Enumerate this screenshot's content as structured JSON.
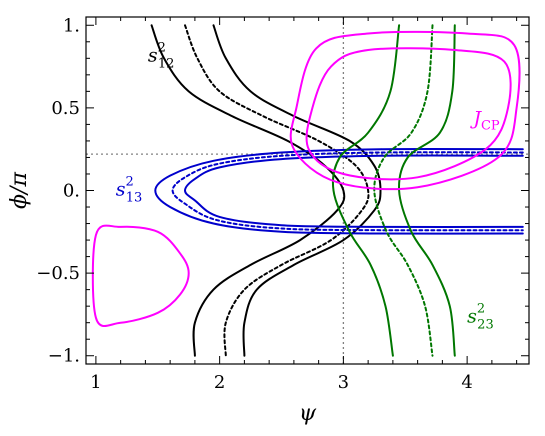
{
  "chart_data": {
    "type": "line",
    "xlabel": "ψ",
    "ylabel": "ϕ/π",
    "xlim": [
      0.92,
      4.5
    ],
    "ylim": [
      -1.05,
      1.05
    ],
    "xticks": [
      1,
      2,
      3,
      4
    ],
    "xtick_labels": [
      "1",
      "2",
      "3",
      "4"
    ],
    "yticks": [
      1.0,
      0.5,
      0.0,
      -0.5,
      -1.0
    ],
    "ytick_labels": [
      "1.",
      "0.5",
      "0.",
      "−0.5",
      "−1."
    ],
    "grid": false,
    "reference_lines": {
      "x": 3.0,
      "y": 0.22,
      "color": "#808080",
      "style": "dotted"
    },
    "colors": {
      "s12": "#000000",
      "s13": "#0000cc",
      "s23": "#007700",
      "jcp": "#ff00ff",
      "ref": "#808080"
    },
    "annotations": [
      {
        "id": "s12",
        "base": "s",
        "sub": "12",
        "sup": "2",
        "x": 1.42,
        "y": 0.78
      },
      {
        "id": "s13",
        "base": "s",
        "sub": "13",
        "sup": "2",
        "x": 1.16,
        "y": -0.03
      },
      {
        "id": "jcp",
        "base": "J",
        "sub": "CP",
        "sup": "",
        "x": 4.05,
        "y": 0.4
      },
      {
        "id": "s23",
        "base": "s",
        "sub": "23",
        "sup": "2",
        "x": 4.0,
        "y": -0.8
      }
    ],
    "series": [
      {
        "group": "s12",
        "style": "solid",
        "points": [
          [
            1.45,
            1.0
          ],
          [
            1.55,
            0.8
          ],
          [
            1.75,
            0.6
          ],
          [
            2.1,
            0.45
          ],
          [
            2.55,
            0.3
          ],
          [
            2.85,
            0.15
          ],
          [
            3.0,
            0.0
          ],
          [
            2.95,
            -0.12
          ],
          [
            2.65,
            -0.3
          ],
          [
            2.25,
            -0.45
          ],
          [
            1.95,
            -0.6
          ],
          [
            1.8,
            -0.8
          ],
          [
            1.8,
            -1.0
          ]
        ]
      },
      {
        "group": "s12",
        "style": "dotted",
        "points": [
          [
            1.72,
            1.0
          ],
          [
            1.82,
            0.8
          ],
          [
            2.0,
            0.6
          ],
          [
            2.35,
            0.45
          ],
          [
            2.8,
            0.3
          ],
          [
            3.1,
            0.15
          ],
          [
            3.2,
            0.0
          ],
          [
            3.15,
            -0.12
          ],
          [
            2.9,
            -0.3
          ],
          [
            2.5,
            -0.45
          ],
          [
            2.2,
            -0.6
          ],
          [
            2.05,
            -0.8
          ],
          [
            2.05,
            -1.0
          ]
        ]
      },
      {
        "group": "s12",
        "style": "solid",
        "points": [
          [
            1.95,
            1.0
          ],
          [
            2.05,
            0.8
          ],
          [
            2.25,
            0.6
          ],
          [
            2.6,
            0.45
          ],
          [
            3.05,
            0.3
          ],
          [
            3.25,
            0.15
          ],
          [
            3.3,
            0.0
          ],
          [
            3.25,
            -0.12
          ],
          [
            3.0,
            -0.3
          ],
          [
            2.6,
            -0.45
          ],
          [
            2.3,
            -0.6
          ],
          [
            2.2,
            -0.8
          ],
          [
            2.2,
            -1.0
          ]
        ]
      },
      {
        "group": "s13",
        "style": "solid",
        "points": [
          [
            4.45,
            0.25
          ],
          [
            3.3,
            0.25
          ],
          [
            2.5,
            0.23
          ],
          [
            1.95,
            0.18
          ],
          [
            1.6,
            0.09
          ],
          [
            1.48,
            0.0
          ],
          [
            1.6,
            -0.1
          ],
          [
            1.95,
            -0.2
          ],
          [
            2.5,
            -0.25
          ],
          [
            3.3,
            -0.26
          ],
          [
            4.45,
            -0.26
          ]
        ]
      },
      {
        "group": "s13",
        "style": "solid",
        "points": [
          [
            4.45,
            0.21
          ],
          [
            3.3,
            0.21
          ],
          [
            2.5,
            0.19
          ],
          [
            2.0,
            0.14
          ],
          [
            1.8,
            0.07
          ],
          [
            1.72,
            0.0
          ],
          [
            1.8,
            -0.06
          ],
          [
            2.0,
            -0.16
          ],
          [
            2.5,
            -0.21
          ],
          [
            3.3,
            -0.22
          ],
          [
            4.45,
            -0.22
          ]
        ]
      },
      {
        "group": "s13",
        "style": "dotted",
        "points": [
          [
            4.45,
            0.23
          ],
          [
            3.3,
            0.23
          ],
          [
            2.5,
            0.21
          ],
          [
            1.98,
            0.16
          ],
          [
            1.72,
            0.08
          ],
          [
            1.62,
            0.0
          ],
          [
            1.72,
            -0.08
          ],
          [
            1.98,
            -0.18
          ],
          [
            2.5,
            -0.23
          ],
          [
            3.3,
            -0.24
          ],
          [
            4.45,
            -0.24
          ]
        ]
      },
      {
        "group": "s23",
        "style": "solid",
        "points": [
          [
            3.45,
            1.0
          ],
          [
            3.38,
            0.6
          ],
          [
            3.2,
            0.35
          ],
          [
            2.97,
            0.2
          ],
          [
            2.92,
            0.0
          ],
          [
            3.05,
            -0.25
          ],
          [
            3.22,
            -0.45
          ],
          [
            3.34,
            -0.7
          ],
          [
            3.4,
            -1.0
          ]
        ]
      },
      {
        "group": "s23",
        "style": "dotted",
        "points": [
          [
            3.72,
            1.0
          ],
          [
            3.68,
            0.6
          ],
          [
            3.55,
            0.35
          ],
          [
            3.33,
            0.2
          ],
          [
            3.25,
            0.0
          ],
          [
            3.35,
            -0.25
          ],
          [
            3.52,
            -0.45
          ],
          [
            3.66,
            -0.7
          ],
          [
            3.72,
            -1.0
          ]
        ]
      },
      {
        "group": "s23",
        "style": "solid",
        "points": [
          [
            3.9,
            1.0
          ],
          [
            3.88,
            0.6
          ],
          [
            3.78,
            0.35
          ],
          [
            3.52,
            0.2
          ],
          [
            3.45,
            0.0
          ],
          [
            3.55,
            -0.25
          ],
          [
            3.72,
            -0.45
          ],
          [
            3.86,
            -0.7
          ],
          [
            3.9,
            -1.0
          ]
        ]
      },
      {
        "group": "jcp",
        "style": "solid",
        "closed": true,
        "points": [
          [
            2.75,
            0.5
          ],
          [
            2.9,
            0.75
          ],
          [
            3.2,
            0.85
          ],
          [
            3.9,
            0.85
          ],
          [
            4.3,
            0.78
          ],
          [
            4.33,
            0.5
          ],
          [
            4.15,
            0.25
          ],
          [
            3.6,
            0.08
          ],
          [
            3.0,
            0.1
          ],
          [
            2.72,
            0.25
          ]
        ]
      },
      {
        "group": "jcp",
        "style": "solid",
        "closed": true,
        "points": [
          [
            2.62,
            0.5
          ],
          [
            2.78,
            0.86
          ],
          [
            3.2,
            0.95
          ],
          [
            4.0,
            0.95
          ],
          [
            4.38,
            0.88
          ],
          [
            4.4,
            0.5
          ],
          [
            4.25,
            0.2
          ],
          [
            3.6,
            0.02
          ],
          [
            2.95,
            0.05
          ],
          [
            2.6,
            0.25
          ]
        ]
      },
      {
        "group": "jcp",
        "style": "solid",
        "closed": true,
        "points": [
          [
            1.0,
            -0.27
          ],
          [
            1.2,
            -0.22
          ],
          [
            1.5,
            -0.25
          ],
          [
            1.68,
            -0.38
          ],
          [
            1.75,
            -0.5
          ],
          [
            1.68,
            -0.63
          ],
          [
            1.5,
            -0.74
          ],
          [
            1.2,
            -0.8
          ],
          [
            1.0,
            -0.77
          ]
        ]
      }
    ]
  }
}
